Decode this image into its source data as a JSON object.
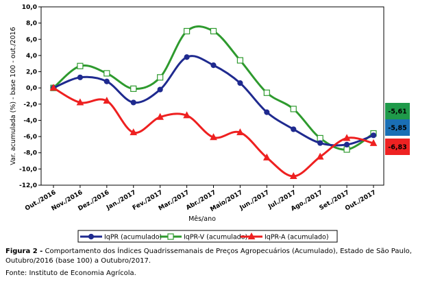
{
  "chart_data": {
    "type": "line",
    "xlabel": "Mês/ano",
    "ylabel": "Var. acumulada (%) - base 100 - out./2016",
    "categories": [
      "Out./2016",
      "Nov./2016",
      "Dez./2016",
      "Jan./2017",
      "Fev./2017",
      "Mar./2017",
      "Abr./2017",
      "Maio/2017",
      "Jun./2017",
      "Jul./2017",
      "Ago./2017",
      "Set./2017",
      "Out./2017"
    ],
    "ylim": [
      -12,
      10
    ],
    "yticks": [
      "10,0",
      "8,0",
      "6,0",
      "4,0",
      "2,0",
      "0,0",
      "-2,0",
      "-4,0",
      "-6,0",
      "-8,0",
      "-10,0",
      "-12,0"
    ],
    "grid": false,
    "legend_position": "bottom",
    "series": [
      {
        "name": "IqPR (acumulado)",
        "color": "#1f2a8f",
        "marker": "circle",
        "values": [
          0,
          1.3,
          0.8,
          -1.8,
          -0.2,
          3.8,
          2.8,
          0.6,
          -3.0,
          -5.1,
          -6.8,
          -7.0,
          -5.85
        ],
        "final_label": "-5,85",
        "badge_color": "#1a6fb5"
      },
      {
        "name": "IqPR-V  (acumulado)",
        "color": "#2e9a2e",
        "marker": "square",
        "values": [
          0,
          2.7,
          1.8,
          -0.1,
          1.3,
          7.0,
          7.0,
          3.4,
          -0.6,
          -2.6,
          -6.2,
          -7.6,
          -5.61
        ],
        "final_label": "-5,61",
        "badge_color": "#1f9a4a"
      },
      {
        "name": "IqPR-A  (acumulado)",
        "color": "#ee2020",
        "marker": "triangle",
        "values": [
          0,
          -1.8,
          -1.6,
          -5.5,
          -3.6,
          -3.4,
          -6.1,
          -5.5,
          -8.6,
          -10.9,
          -8.5,
          -6.2,
          -6.83
        ],
        "final_label": "-6,83",
        "badge_color": "#ee2222"
      }
    ]
  },
  "caption": {
    "label": "Figura 2 -",
    "text": " Comportamento dos Índices Quadrissemanais de Preços Agropecuários (Acumulado), Estado de São Paulo, Outubro/2016 (base 100) a Outubro/2017."
  },
  "source": "Fonte: Instituto de Economia Agrícola."
}
